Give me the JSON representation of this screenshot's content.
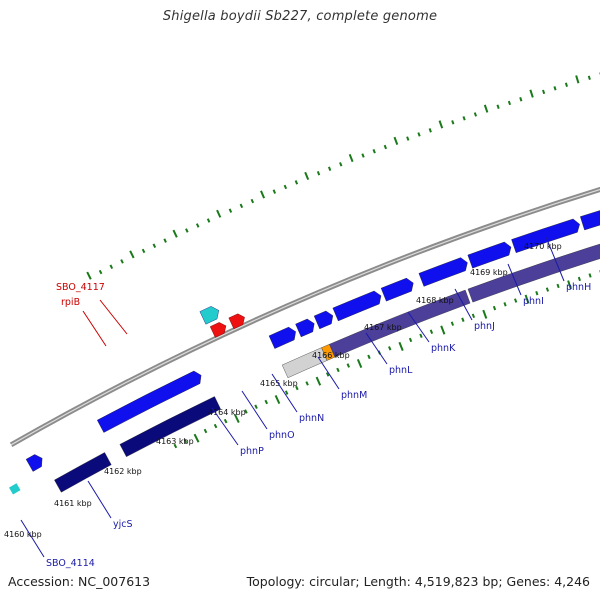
{
  "title": "Shigella boydii Sb227, complete genome",
  "footer": {
    "accession": "Accession: NC_007613",
    "summary": "Topology: circular; Length: 4,519,823 bp; Genes: 4,246"
  },
  "colors": {
    "backbone": "#8c8c8c",
    "forward_gene": "#1010ee",
    "reverse_gene": "#4b3f9a",
    "reverse_gene_dark": "#0a0a7a",
    "orange_segment": "#ff9900",
    "pseudo_segment": "#d2d2d2",
    "rna_forward": "#22cccc",
    "rna_reverse": "#ee1111",
    "tick_dot": "#1a7a1a",
    "label_blue": "#1a1aa8",
    "label_red": "#cc0000"
  },
  "scale": {
    "ticks": [
      {
        "label": "4160 kbp"
      },
      {
        "label": "4161 kbp"
      },
      {
        "label": "4162 kbp"
      },
      {
        "label": "4163 kbp"
      },
      {
        "label": "4164 kbp"
      },
      {
        "label": "4165 kbp"
      },
      {
        "label": "4166 kbp"
      },
      {
        "label": "4167 kbp"
      },
      {
        "label": "4168 kbp"
      },
      {
        "label": "4169 kbp"
      },
      {
        "label": "4170 kbp"
      }
    ]
  },
  "gene_labels": [
    {
      "text": "SBO_4114",
      "color": "blue"
    },
    {
      "text": "yjcS",
      "color": "blue"
    },
    {
      "text": "phnP",
      "color": "blue"
    },
    {
      "text": "phnO",
      "color": "blue"
    },
    {
      "text": "phnN",
      "color": "blue"
    },
    {
      "text": "phnM",
      "color": "blue"
    },
    {
      "text": "phnL",
      "color": "blue"
    },
    {
      "text": "phnK",
      "color": "blue"
    },
    {
      "text": "phnJ",
      "color": "blue"
    },
    {
      "text": "phnI",
      "color": "blue"
    },
    {
      "text": "phnH",
      "color": "blue"
    },
    {
      "text": "SBO_4117",
      "color": "red"
    },
    {
      "text": "rpiB",
      "color": "red"
    }
  ]
}
